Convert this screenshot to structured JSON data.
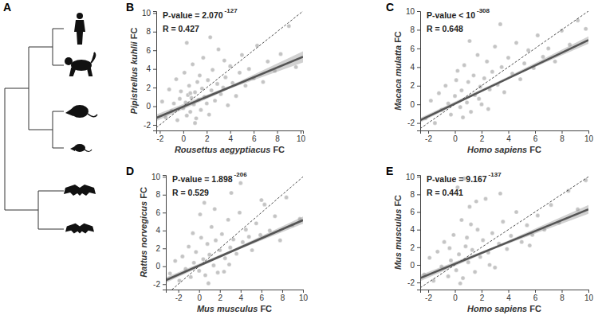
{
  "tree": {
    "panel_label": "A"
  },
  "chart_data": [
    {
      "type": "scatter",
      "panel_label": "B",
      "color": "#c4c4c4",
      "x_label": "Rousettus aegyptiacus FC",
      "y_label": "Pipistrellus kuhlii FC",
      "annotations": [
        {
          "text": "P-value = 2.070",
          "superscript": "-127"
        },
        {
          "text": "R = 0.427"
        }
      ],
      "xlim": [
        -2.3,
        10.2
      ],
      "ylim": [
        -2.6,
        10.2
      ],
      "xticks": [
        -2,
        0,
        2,
        4,
        6,
        8,
        10
      ],
      "yticks": [
        -2,
        0,
        2,
        4,
        6,
        8,
        10
      ],
      "x": [
        -1.8,
        -1.5,
        -1.2,
        -1.0,
        -0.8,
        -0.6,
        -0.5,
        -0.3,
        -0.2,
        0.0,
        0.1,
        0.2,
        0.3,
        0.4,
        0.5,
        0.6,
        0.7,
        0.8,
        0.9,
        1.0,
        1.1,
        1.2,
        1.3,
        1.4,
        1.5,
        1.6,
        1.7,
        1.8,
        2.0,
        2.1,
        2.2,
        2.4,
        2.5,
        2.7,
        2.9,
        3.0,
        3.2,
        3.4,
        3.6,
        3.8,
        4.0,
        4.2,
        4.5,
        4.8,
        5.0,
        5.3,
        5.6,
        6.0,
        6.3,
        6.8,
        7.2,
        7.8,
        8.3,
        9.0,
        9.6,
        0.3,
        1.0,
        0.6,
        2.3,
        3.5
      ],
      "y": [
        0.5,
        -1.2,
        1.8,
        -0.5,
        0.3,
        2.9,
        -1.5,
        0.8,
        1.6,
        -0.2,
        3.6,
        0.4,
        -1.0,
        1.2,
        2.2,
        -0.6,
        0.9,
        4.5,
        0.2,
        1.5,
        -1.3,
        2.6,
        0.7,
        3.3,
        -0.4,
        1.9,
        5.2,
        1.0,
        0.3,
        2.8,
        -0.9,
        1.7,
        3.9,
        0.6,
        2.4,
        6.1,
        1.3,
        2.0,
        3.1,
        0.1,
        4.3,
        2.5,
        1.1,
        3.6,
        5.5,
        2.2,
        4.0,
        3.0,
        6.5,
        2.6,
        4.8,
        3.8,
        5.6,
        8.6,
        4.2,
        6.8,
        -1.8,
        1.4,
        7.4,
        4.9
      ],
      "fit_line": {
        "x": [
          -2.3,
          10.2
        ],
        "y": [
          -1.25,
          5.3
        ]
      },
      "fit_band": {
        "x": [
          -2.3,
          4,
          10.2
        ],
        "lower": [
          -1.6,
          1.9,
          4.7
        ],
        "upper": [
          -0.9,
          2.2,
          5.9
        ]
      },
      "reference_line": {
        "x": [
          -2.3,
          10.2
        ],
        "y": [
          -2.3,
          10.2
        ]
      }
    },
    {
      "type": "scatter",
      "panel_label": "C",
      "color": "#c4c4c4",
      "x_label": "Homo sapiens FC",
      "y_label": "Macaca mulatta FC",
      "annotations": [
        {
          "text": "P-value < 10",
          "superscript": "-308"
        },
        {
          "text": "R = 0.648"
        }
      ],
      "xlim": [
        -2.6,
        10
      ],
      "ylim": [
        -2.8,
        10
      ],
      "xticks": [
        -2,
        0,
        2,
        4,
        6,
        8,
        10
      ],
      "yticks": [
        -2,
        0,
        2,
        4,
        6,
        8,
        10
      ],
      "x": [
        -2.2,
        -1.8,
        -1.5,
        -1.2,
        -1.0,
        -0.7,
        -0.5,
        -0.3,
        0.0,
        0.2,
        0.4,
        0.5,
        0.7,
        0.9,
        1.0,
        1.2,
        1.4,
        1.5,
        1.7,
        1.9,
        2.0,
        2.2,
        2.4,
        2.6,
        2.8,
        3.0,
        3.2,
        3.5,
        3.7,
        4.0,
        4.3,
        4.6,
        4.9,
        5.2,
        5.5,
        5.9,
        6.2,
        6.6,
        7.0,
        7.5,
        8.0,
        8.6,
        9.2,
        9.8,
        0.6,
        1.1,
        2.5,
        3.4,
        1.8,
        0.1
      ],
      "y": [
        -1.5,
        0.4,
        -2.0,
        1.2,
        -0.6,
        2.0,
        0.1,
        -1.1,
        0.9,
        3.6,
        -0.3,
        1.5,
        4.2,
        0.2,
        2.4,
        -0.8,
        3.1,
        1.0,
        5.3,
        1.9,
        0.0,
        2.8,
        4.6,
        1.6,
        3.5,
        6.2,
        2.1,
        4.0,
        1.3,
        5.0,
        3.3,
        6.6,
        2.7,
        4.4,
        5.8,
        3.9,
        7.4,
        5.1,
        6.0,
        4.6,
        7.9,
        6.4,
        9.0,
        8.1,
        -1.4,
        6.8,
        -0.5,
        8.6,
        0.6,
        2.6
      ],
      "fit_line": {
        "x": [
          -2.6,
          10
        ],
        "y": [
          -1.7,
          6.9
        ]
      },
      "fit_band": {
        "x": [
          -2.6,
          3.5,
          10
        ],
        "lower": [
          -1.95,
          2.45,
          6.5
        ],
        "upper": [
          -1.45,
          2.65,
          7.3
        ]
      },
      "reference_line": {
        "x": [
          -2.6,
          10
        ],
        "y": [
          -2.6,
          10
        ]
      }
    },
    {
      "type": "scatter",
      "panel_label": "D",
      "color": "#c4c4c4",
      "x_label": "Mus musculus FC",
      "y_label": "Rattus norvegicus FC",
      "annotations": [
        {
          "text": "P-value = 1.898",
          "superscript": "-206"
        },
        {
          "text": "R = 0.529"
        }
      ],
      "xlim": [
        -3.2,
        10
      ],
      "ylim": [
        -2.6,
        10.2
      ],
      "xticks": [
        -2,
        0,
        2,
        4,
        6,
        8,
        10
      ],
      "yticks": [
        -2,
        0,
        2,
        4,
        6,
        8,
        10
      ],
      "x": [
        -2.8,
        -2.3,
        -1.9,
        -1.6,
        -1.3,
        -1.0,
        -0.8,
        -0.5,
        -0.3,
        0.0,
        0.2,
        0.4,
        0.6,
        0.8,
        1.0,
        1.2,
        1.4,
        1.6,
        1.8,
        2.0,
        2.2,
        2.5,
        2.8,
        3.0,
        3.3,
        3.6,
        3.9,
        4.2,
        4.5,
        4.8,
        5.1,
        5.5,
        5.9,
        6.3,
        6.8,
        7.3,
        7.8,
        8.4,
        9.0,
        9.7,
        0.1,
        0.9,
        1.5,
        2.4,
        3.1,
        -0.6,
        0.5,
        2.9,
        4.0,
        6.0
      ],
      "y": [
        -0.8,
        0.6,
        -1.6,
        1.1,
        -0.3,
        2.2,
        -1.2,
        0.4,
        1.6,
        -0.5,
        3.2,
        0.8,
        -1.0,
        2.5,
        1.3,
        4.4,
        0.1,
        2.9,
        -0.7,
        1.8,
        3.6,
        0.9,
        5.2,
        2.1,
        3.0,
        1.4,
        6.0,
        2.7,
        4.1,
        3.3,
        1.8,
        4.8,
        3.5,
        6.9,
        4.0,
        5.6,
        2.9,
        7.7,
        4.6,
        5.3,
        5.8,
        -1.9,
        6.4,
        -0.6,
        8.2,
        3.7,
        7.1,
        0.2,
        9.3,
        7.4
      ],
      "fit_line": {
        "x": [
          -3.2,
          10
        ],
        "y": [
          -1.55,
          5.15
        ]
      },
      "fit_band": {
        "x": [
          -3.2,
          3,
          10
        ],
        "lower": [
          -1.85,
          1.5,
          4.75
        ],
        "upper": [
          -1.25,
          1.75,
          5.55
        ]
      },
      "reference_line": {
        "x": [
          -3.2,
          10
        ],
        "y": [
          -3.2,
          10
        ]
      }
    },
    {
      "type": "scatter",
      "panel_label": "E",
      "color": "#c4c4c4",
      "x_label": "Homo sapiens FC",
      "y_label": "Mus musculus FC",
      "annotations": [
        {
          "text": "P-value = 9.167",
          "superscript": "-137"
        },
        {
          "text": "R = 0.441"
        }
      ],
      "xlim": [
        -2.6,
        10
      ],
      "ylim": [
        -2.8,
        10.2
      ],
      "xticks": [
        -2,
        0,
        2,
        4,
        6,
        8,
        10
      ],
      "yticks": [
        -2,
        0,
        2,
        4,
        6,
        8,
        10
      ],
      "x": [
        -2.3,
        -1.9,
        -1.6,
        -1.3,
        -1.0,
        -0.8,
        -0.5,
        -0.3,
        -0.1,
        0.1,
        0.3,
        0.5,
        0.6,
        0.8,
        1.0,
        1.1,
        1.3,
        1.5,
        1.7,
        1.9,
        2.1,
        2.3,
        2.5,
        2.8,
        3.0,
        3.3,
        3.6,
        3.9,
        4.2,
        4.6,
        5.0,
        5.4,
        5.8,
        6.2,
        6.7,
        7.2,
        7.8,
        8.5,
        9.2,
        9.8,
        0.2,
        0.7,
        1.2,
        0.4,
        1.6,
        2.6,
        0.9,
        3.4,
        -0.4,
        5.6
      ],
      "y": [
        -1.1,
        0.8,
        -1.8,
        1.5,
        -0.2,
        2.6,
        -1.3,
        0.5,
        3.4,
        -0.6,
        1.2,
        5.1,
        -1.5,
        2.1,
        0.3,
        6.6,
        1.7,
        -0.8,
        4.0,
        0.9,
        2.8,
        7.5,
        1.4,
        3.6,
        -0.3,
        2.4,
        4.9,
        1.8,
        3.3,
        6.0,
        2.6,
        4.5,
        3.4,
        5.6,
        4.0,
        6.8,
        4.8,
        8.4,
        6.3,
        9.6,
        8.8,
        9.8,
        4.6,
        -2.1,
        7.2,
        0.0,
        3.1,
        8.1,
        1.9,
        2.2
      ],
      "fit_line": {
        "x": [
          -2.6,
          10
        ],
        "y": [
          -1.5,
          6.3
        ]
      },
      "fit_band": {
        "x": [
          -2.6,
          3,
          10
        ],
        "lower": [
          -1.85,
          1.85,
          5.8
        ],
        "upper": [
          -1.15,
          2.1,
          6.8
        ]
      },
      "reference_line": {
        "x": [
          -2.6,
          10
        ],
        "y": [
          -2.6,
          10
        ]
      }
    }
  ]
}
